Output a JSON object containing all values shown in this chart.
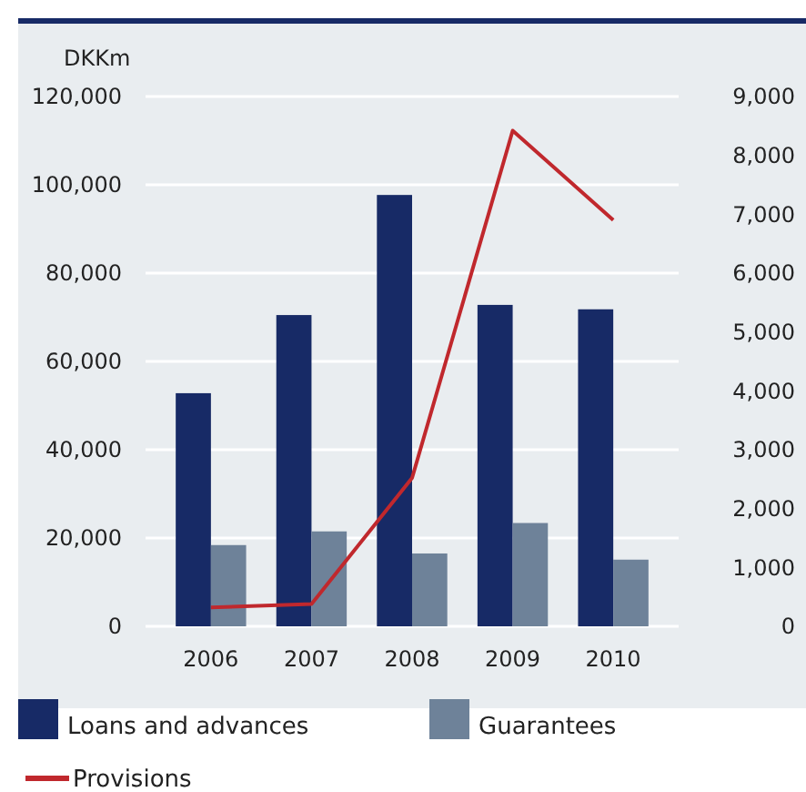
{
  "chart_data": {
    "type": "bar",
    "ylabel": "DKKm",
    "categories": [
      "2006",
      "2007",
      "2008",
      "2009",
      "2010"
    ],
    "series": [
      {
        "name": "Loans and advances",
        "color": "#172a66",
        "values": [
          52800,
          70500,
          97700,
          72800,
          71800
        ]
      },
      {
        "name": "Guarantees",
        "color": "#6e8299",
        "values": [
          18400,
          21500,
          16500,
          23400,
          15100
        ]
      },
      {
        "name": "Provisions",
        "type": "line",
        "axis": "y2",
        "color": "#c0282d",
        "values": [
          320,
          380,
          2520,
          8420,
          6900
        ]
      }
    ],
    "ylim": [
      0,
      120000
    ],
    "yticks": [
      {
        "value": 0,
        "label": "0"
      },
      {
        "value": 20000,
        "label": "20,000"
      },
      {
        "value": 40000,
        "label": "40,000"
      },
      {
        "value": 60000,
        "label": "60,000"
      },
      {
        "value": 80000,
        "label": "80,000"
      },
      {
        "value": 100000,
        "label": "100,000"
      },
      {
        "value": 120000,
        "label": "120,000"
      }
    ],
    "y2lim": [
      0,
      9000
    ],
    "y2ticks": [
      {
        "value": 0,
        "label": "0"
      },
      {
        "value": 1000,
        "label": "1,000"
      },
      {
        "value": 2000,
        "label": "2,000"
      },
      {
        "value": 3000,
        "label": "3,000"
      },
      {
        "value": 4000,
        "label": "4,000"
      },
      {
        "value": 5000,
        "label": "5,000"
      },
      {
        "value": 6000,
        "label": "6,000"
      },
      {
        "value": 7000,
        "label": "7,000"
      },
      {
        "value": 8000,
        "label": "8,000"
      },
      {
        "value": 9000,
        "label": "9,000"
      }
    ],
    "grid": "y",
    "legend": "bottom",
    "marker": "none",
    "line_style": "solid"
  }
}
